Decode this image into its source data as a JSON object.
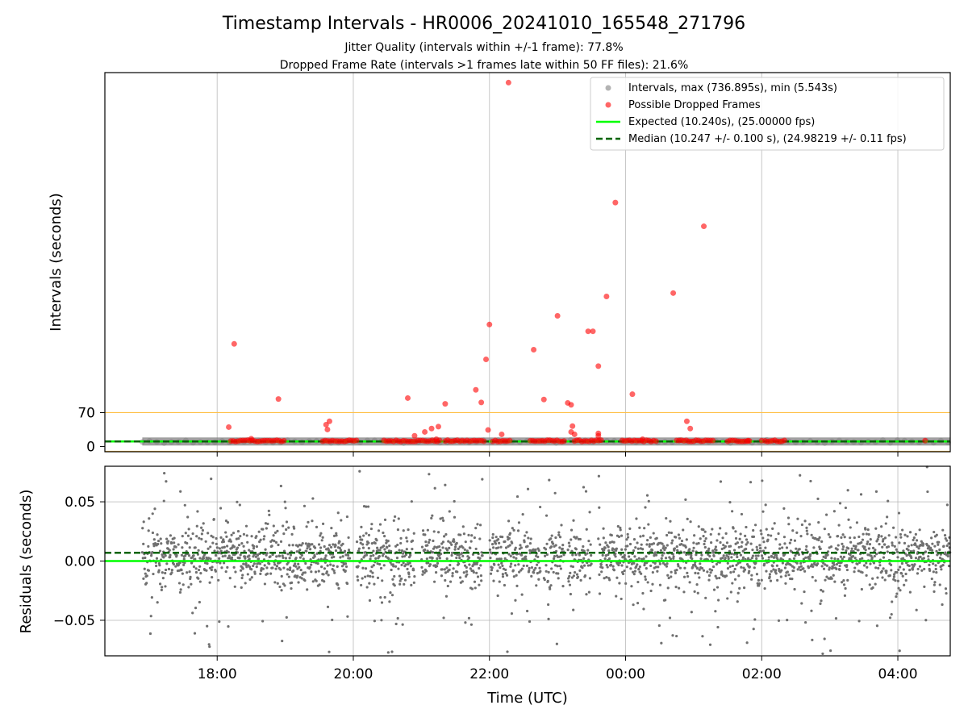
{
  "chart_data": [
    {
      "type": "scatter",
      "title": "Timestamp Intervals - HR0006_20241010_165548_271796",
      "subtitle_lines": [
        "Jitter Quality (intervals within +/-1 frame): 77.8%",
        "Dropped Frame Rate (intervals >1 frames late within 50 FF files): 21.6%"
      ],
      "ylabel": "Intervals (seconds)",
      "x_unit": "hours since 00:00 UTC (day 1)",
      "xlim": [
        -7.65,
        4.77
      ],
      "ylim": [
        -10.94,
        772.7
      ],
      "yticks": [
        {
          "value": 0,
          "label": "0"
        },
        {
          "value": 70,
          "label": "70"
        }
      ],
      "reference_lines": [
        {
          "value": 70,
          "color": "#ffc14a"
        },
        {
          "value": -10,
          "color": "#ffc14a"
        }
      ],
      "legend": {
        "position": "top-right",
        "entries": [
          {
            "label": "Intervals, max (736.895s), min (5.543s)",
            "marker": "dot",
            "color": "#808080"
          },
          {
            "label": "Possible Dropped Frames",
            "marker": "dot",
            "color": "#ff0000"
          },
          {
            "label": "Expected (10.240s), (25.00000 fps)",
            "marker": "solid",
            "color": "#00ff00"
          },
          {
            "label": "Median (10.247 +/- 0.100 s), (24.98219 +/- 0.11 fps)",
            "marker": "dashed",
            "color": "#006400"
          }
        ]
      },
      "series": [
        {
          "name": "Intervals, max (736.895s), min (5.543s)",
          "color": "#808080",
          "band": {
            "x_start": -7.1,
            "x_end": 4.77,
            "y": 10.24
          }
        },
        {
          "name": "Possible Dropped Frames",
          "color": "#ff0000",
          "points": [
            [
              -5.75,
              212
            ],
            [
              -5.83,
              40
            ],
            [
              -5.1,
              98
            ],
            [
              -5.5,
              16
            ],
            [
              -4.35,
              52
            ],
            [
              -4.4,
              45
            ],
            [
              -4.38,
              35
            ],
            [
              -3.2,
              100
            ],
            [
              -3.1,
              22
            ],
            [
              -2.95,
              30
            ],
            [
              -2.85,
              37
            ],
            [
              -2.75,
              41
            ],
            [
              -2.65,
              88
            ],
            [
              -2.78,
              15
            ],
            [
              -2.2,
              117
            ],
            [
              -2.12,
              91
            ],
            [
              -2.05,
              180
            ],
            [
              -2.0,
              252
            ],
            [
              -2.02,
              34
            ],
            [
              -1.82,
              25
            ],
            [
              -1.72,
              752
            ],
            [
              -1.35,
              200
            ],
            [
              -1.2,
              97
            ],
            [
              -1.0,
              270
            ],
            [
              -0.85,
              90
            ],
            [
              -0.8,
              86
            ],
            [
              -0.78,
              42
            ],
            [
              -0.8,
              30
            ],
            [
              -0.75,
              25
            ],
            [
              -0.55,
              238
            ],
            [
              -0.48,
              238
            ],
            [
              -0.4,
              166
            ],
            [
              -0.4,
              27
            ],
            [
              -0.4,
              22
            ],
            [
              -0.28,
              310
            ],
            [
              -0.15,
              504
            ],
            [
              0.1,
              108
            ],
            [
              0.25,
              15
            ],
            [
              0.7,
              317
            ],
            [
              0.9,
              52
            ],
            [
              0.95,
              37
            ],
            [
              1.15,
              455
            ],
            [
              1.8,
              12
            ],
            [
              2.0,
              12
            ],
            [
              4.4,
              12
            ]
          ],
          "dense_clusters": [
            [
              -5.8,
              -5.0
            ],
            [
              -4.45,
              -3.95
            ],
            [
              -3.55,
              -2.7
            ],
            [
              -2.65,
              -2.05
            ],
            [
              -1.95,
              -1.7
            ],
            [
              -1.4,
              -0.9
            ],
            [
              -0.75,
              -0.35
            ],
            [
              -0.05,
              0.45
            ],
            [
              0.75,
              1.3
            ],
            [
              1.5,
              1.85
            ],
            [
              2.05,
              2.35
            ]
          ]
        },
        {
          "name": "Expected (10.240s), (25.00000 fps)",
          "style": "solid",
          "color": "#00ff00",
          "y": 10.24
        },
        {
          "name": "Median (10.247 +/- 0.100 s), (24.98219 +/- 0.11 fps)",
          "style": "dashed",
          "color": "#006400",
          "y": 10.247
        }
      ],
      "grid": {
        "x": true,
        "y": false
      }
    },
    {
      "type": "scatter",
      "xlabel": "Time (UTC)",
      "ylabel": "Residuals (seconds)",
      "xlim": [
        -7.65,
        4.77
      ],
      "ylim": [
        -0.08,
        0.08
      ],
      "xticks": [
        {
          "value": -6,
          "label": "18:00"
        },
        {
          "value": -4,
          "label": "20:00"
        },
        {
          "value": -2,
          "label": "22:00"
        },
        {
          "value": 0,
          "label": "00:00"
        },
        {
          "value": 2,
          "label": "02:00"
        },
        {
          "value": 4,
          "label": "04:00"
        }
      ],
      "yticks": [
        {
          "value": 0.05,
          "label": "0.05"
        },
        {
          "value": 0,
          "label": "0.00"
        },
        {
          "value": -0.05,
          "label": "−0.05"
        }
      ],
      "series": [
        {
          "name": "Residuals",
          "color": "#707070",
          "x_start": -7.1,
          "x_end": 4.77,
          "core_sd": 0.012,
          "outlier_sd": 0.045
        },
        {
          "name": "Expected",
          "style": "solid",
          "color": "#00ff00",
          "y": 0.0
        },
        {
          "name": "Median offset",
          "style": "dashed",
          "color": "#006400",
          "y": 0.007
        }
      ],
      "gaps": [
        [
          -4.05,
          -3.95
        ],
        [
          -3.1,
          -3.0
        ],
        [
          -2.1,
          -2.0
        ],
        [
          -1.25,
          -1.2
        ],
        [
          -0.9,
          -0.85
        ],
        [
          -0.5,
          -0.4
        ]
      ],
      "grid": {
        "x": true,
        "y": true
      }
    }
  ]
}
